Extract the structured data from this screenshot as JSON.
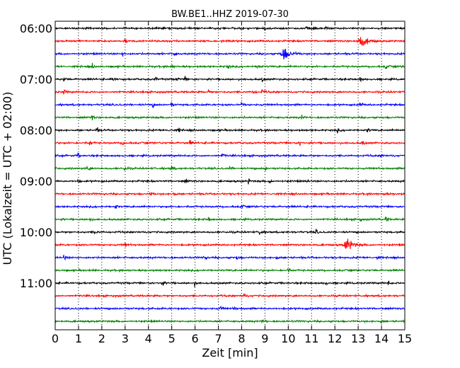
{
  "chart_data": {
    "type": "line",
    "title": "BW.BE1..HHZ 2019-07-30",
    "xlabel": "Zeit  [min]",
    "ylabel": "UTC (Lokalzeit = UTC + 02:00)",
    "xlim": [
      0,
      15
    ],
    "x_ticks": [
      "0",
      "1",
      "2",
      "3",
      "4",
      "5",
      "6",
      "7",
      "8",
      "9",
      "10",
      "11",
      "12",
      "13",
      "14",
      "15"
    ],
    "y_ticks": [
      "06:00",
      "07:00",
      "08:00",
      "09:00",
      "10:00",
      "11:00"
    ],
    "grid": "vertical dotted at each minute",
    "traces_per_hour": 4,
    "trace_colors": [
      "#000000",
      "#ff0000",
      "#0000ff",
      "#008000"
    ],
    "series": [
      {
        "start": "06:00",
        "events_min": [
          9.0,
          10.8,
          11.1,
          11.6
        ]
      },
      {
        "start": "06:15",
        "events_min": [
          3.0,
          13.1
        ]
      },
      {
        "start": "06:30",
        "events_min": [
          2.9,
          5.1,
          9.8
        ]
      },
      {
        "start": "06:45",
        "events_min": [
          1.6,
          5.0,
          7.4,
          8.7,
          14.2
        ]
      },
      {
        "start": "07:00",
        "events_min": [
          0.4,
          2.5,
          4.3,
          5.2,
          5.6,
          8.9,
          13.1
        ]
      },
      {
        "start": "07:15",
        "events_min": [
          0.4,
          6.6,
          8.5,
          8.9
        ]
      },
      {
        "start": "07:30",
        "events_min": [
          4.2,
          5.0,
          8.0,
          13.1
        ]
      },
      {
        "start": "07:45",
        "events_min": [
          1.6,
          10.6
        ]
      },
      {
        "start": "08:00",
        "events_min": [
          1.8,
          4.8,
          5.3,
          12.1,
          13.4
        ]
      },
      {
        "start": "08:15",
        "events_min": [
          1.5,
          2.9,
          5.8,
          10.5,
          13.2
        ]
      },
      {
        "start": "08:30",
        "events_min": [
          1.0,
          7.2,
          14.0
        ]
      },
      {
        "start": "08:45",
        "events_min": [
          1.4,
          3.0,
          5.0,
          7.5,
          9.0
        ]
      },
      {
        "start": "09:00",
        "events_min": [
          1.0,
          5.6,
          8.3,
          9.2,
          10.8
        ]
      },
      {
        "start": "09:15",
        "events_min": [
          4.1,
          5.1,
          14.1
        ]
      },
      {
        "start": "09:30",
        "events_min": [
          2.6,
          8.0
        ]
      },
      {
        "start": "09:45",
        "events_min": [
          1.5,
          6.6,
          13.1,
          14.2
        ]
      },
      {
        "start": "10:00",
        "events_min": [
          1.7,
          8.8,
          11.2
        ]
      },
      {
        "start": "10:15",
        "events_min": [
          3.0,
          12.5
        ]
      },
      {
        "start": "10:30",
        "events_min": [
          0.4,
          6.4,
          7.8,
          9.5,
          13.8
        ]
      },
      {
        "start": "10:45",
        "events_min": [
          10.0
        ]
      },
      {
        "start": "11:00",
        "events_min": [
          4.6,
          6.0,
          11.6,
          14.3
        ]
      },
      {
        "start": "11:15",
        "events_min": [
          8.1
        ]
      },
      {
        "start": "11:30",
        "events_min": [
          7.1,
          7.7
        ]
      },
      {
        "start": "11:45",
        "events_min": [
          8.9,
          14.0
        ]
      }
    ],
    "big_events": [
      {
        "start": "06:15",
        "minute": 13.1,
        "color": "#ff0000"
      },
      {
        "start": "06:30",
        "minute": 9.8,
        "color": "#0000ff"
      },
      {
        "start": "10:15",
        "minute": 12.5,
        "color": "#ff0000"
      }
    ]
  }
}
